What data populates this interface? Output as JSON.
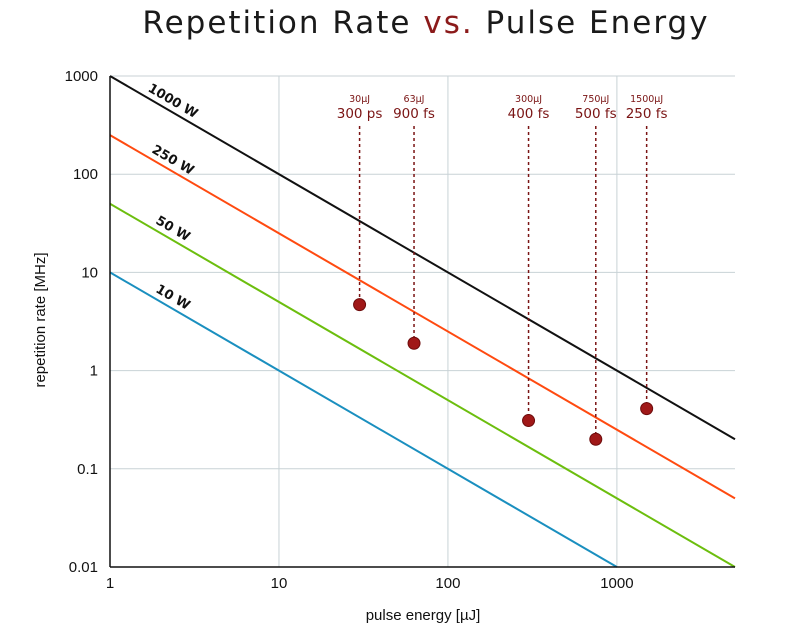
{
  "chart_data": {
    "type": "line",
    "title": {
      "part1": "Repetition Rate ",
      "part2": "vs.",
      "part3": " Pulse Energy"
    },
    "xlabel": "pulse energy [µJ]",
    "ylabel": "repetition rate [MHz]",
    "xscale": "log",
    "yscale": "log",
    "xlim": [
      1,
      5000
    ],
    "ylim": [
      0.01,
      1000
    ],
    "x_ticks": [
      {
        "value": 1,
        "label": "1"
      },
      {
        "value": 10,
        "label": "10"
      },
      {
        "value": 100,
        "label": "100"
      },
      {
        "value": 1000,
        "label": "1000"
      }
    ],
    "y_ticks": [
      {
        "value": 0.01,
        "label": "0.01"
      },
      {
        "value": 0.1,
        "label": "0.1"
      },
      {
        "value": 1,
        "label": "1"
      },
      {
        "value": 10,
        "label": "10"
      },
      {
        "value": 100,
        "label": "100"
      },
      {
        "value": 1000,
        "label": "1000"
      }
    ],
    "grid": true,
    "series": [
      {
        "name": "1000 W",
        "power_w": 1000,
        "color": "#111111",
        "label_at_x": 2.2
      },
      {
        "name": "250 W",
        "power_w": 250,
        "color": "#ff4a10",
        "label_at_x": 2.2
      },
      {
        "name": "50 W",
        "power_w": 50,
        "color": "#6cbe0e",
        "label_at_x": 2.2
      },
      {
        "name": "10 W",
        "power_w": 10,
        "color": "#1a8fbf",
        "label_at_x": 2.2
      }
    ],
    "points": [
      {
        "energy_uj": 30,
        "rate_mhz": 4.7,
        "energy_label": "30µJ",
        "duration_label": "300 ps"
      },
      {
        "energy_uj": 63,
        "rate_mhz": 1.9,
        "energy_label": "63µJ",
        "duration_label": "900 fs"
      },
      {
        "energy_uj": 300,
        "rate_mhz": 0.31,
        "energy_label": "300µJ",
        "duration_label": "400 fs"
      },
      {
        "energy_uj": 750,
        "rate_mhz": 0.2,
        "energy_label": "750µJ",
        "duration_label": "500 fs"
      },
      {
        "energy_uj": 1500,
        "rate_mhz": 0.41,
        "energy_label": "1500µJ",
        "duration_label": "250 fs"
      }
    ],
    "colors": {
      "title_main": "#1a1a1a",
      "title_accent": "#8b1a1a",
      "point_fill": "#a01818",
      "annotation": "#7a1414",
      "grid": "#c8d2d6",
      "axis": "#111111"
    }
  }
}
